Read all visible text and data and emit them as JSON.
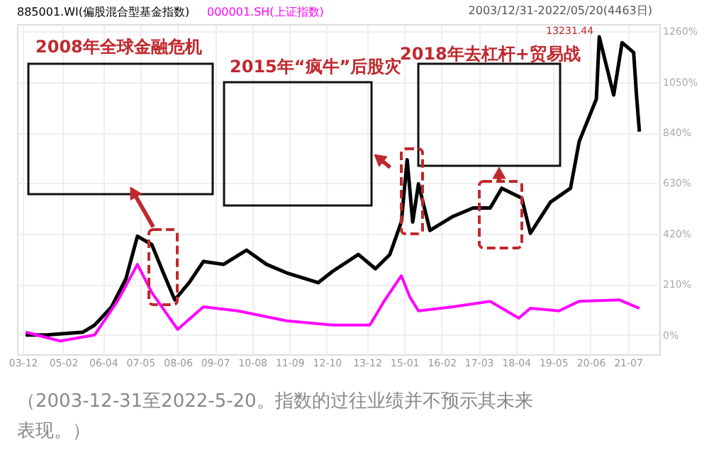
{
  "chart_data": {
    "type": "line",
    "series": [
      {
        "name": "885001.WI(偏股混合型基金指数)",
        "color": "#000000",
        "x": [
          "2004-01",
          "2004-08",
          "2005-09",
          "2006-01",
          "2006-07",
          "2006-12",
          "2007-04",
          "2007-09",
          "2008-01",
          "2008-05",
          "2008-10",
          "2009-03",
          "2009-10",
          "2010-06",
          "2011-01",
          "2011-08",
          "2012-07",
          "2012-12",
          "2013-09",
          "2014-03",
          "2014-08",
          "2014-12",
          "2015-02",
          "2015-04",
          "2015-06",
          "2015-10",
          "2016-06",
          "2017-01",
          "2017-07",
          "2017-11",
          "2018-06",
          "2018-09",
          "2019-04",
          "2019-11",
          "2020-02",
          "2020-08",
          "2020-09",
          "2021-02",
          "2021-05",
          "2021-09",
          "2021-10",
          "2021-11"
        ],
        "values": [
          0,
          0,
          12,
          41,
          117,
          234,
          410,
          375,
          258,
          146,
          217,
          305,
          293,
          352,
          293,
          258,
          217,
          264,
          334,
          275,
          334,
          469,
          727,
          469,
          627,
          434,
          492,
          527,
          527,
          609,
          568,
          422,
          551,
          609,
          803,
          979,
          1237,
          996,
          1213,
          1172,
          996,
          844
        ]
      },
      {
        "name": "000001.SH(上证指数)",
        "color": "#ff00ff",
        "x": [
          "2004-01",
          "2005-01",
          "2006-01",
          "2006-09",
          "2007-04",
          "2007-09",
          "2008-06",
          "2009-03",
          "2010-03",
          "2011-08",
          "2012-12",
          "2014-01",
          "2014-06",
          "2014-12",
          "2015-03",
          "2015-06",
          "2016-06",
          "2017-07",
          "2018-05",
          "2018-09",
          "2019-07",
          "2020-02",
          "2021-04",
          "2021-11"
        ],
        "values": [
          12,
          -25,
          0,
          140,
          293,
          176,
          23,
          117,
          100,
          59,
          41,
          41,
          140,
          246,
          158,
          100,
          117,
          140,
          70,
          111,
          100,
          140,
          146,
          111
        ]
      }
    ],
    "xlim": [
      "2003-10",
      "2022-06"
    ],
    "xticks": [
      {
        "value": "2003-12",
        "label": "03-12"
      },
      {
        "value": "2005-02",
        "label": "05-02"
      },
      {
        "value": "2006-04",
        "label": "06-04"
      },
      {
        "value": "2007-05",
        "label": "07-05"
      },
      {
        "value": "2008-06",
        "label": "08-06"
      },
      {
        "value": "2009-07",
        "label": "09-07"
      },
      {
        "value": "2010-08",
        "label": "10-08"
      },
      {
        "value": "2011-09",
        "label": "11-09"
      },
      {
        "value": "2012-10",
        "label": "12-10"
      },
      {
        "value": "2013-12",
        "label": "13-12"
      },
      {
        "value": "2015-01",
        "label": "15-01"
      },
      {
        "value": "2016-02",
        "label": "16-02"
      },
      {
        "value": "2017-03",
        "label": "17-03"
      },
      {
        "value": "2018-04",
        "label": "18-04"
      },
      {
        "value": "2019-05",
        "label": "19-05"
      },
      {
        "value": "2020-06",
        "label": "20-06"
      },
      {
        "value": "2021-07",
        "label": "21-07"
      }
    ],
    "ylim": [
      -80,
      1290
    ],
    "yticks": [
      {
        "value": 0,
        "label": "0%"
      },
      {
        "value": 210,
        "label": "210%"
      },
      {
        "value": 420,
        "label": "420%"
      },
      {
        "value": 630,
        "label": "630%"
      },
      {
        "value": 840,
        "label": "840%"
      },
      {
        "value": 1050,
        "label": "1050%"
      },
      {
        "value": 1260,
        "label": "1260%"
      }
    ],
    "grid": true,
    "legend": "top left",
    "marker": "none",
    "line_style": "solid",
    "annotations": [
      "2008年全球金融危机",
      "2015年“疯牛”后股灾",
      "2018年去杠杆+贸易战",
      {
        "text": "13231.44",
        "x": "2020-08",
        "y": 1237
      },
      "2003/12/31-2022/05/20(4463日)",
      "（2003-12-31至2022-5-20。指数的过往业绩并不预示其未来表现。）"
    ]
  }
}
